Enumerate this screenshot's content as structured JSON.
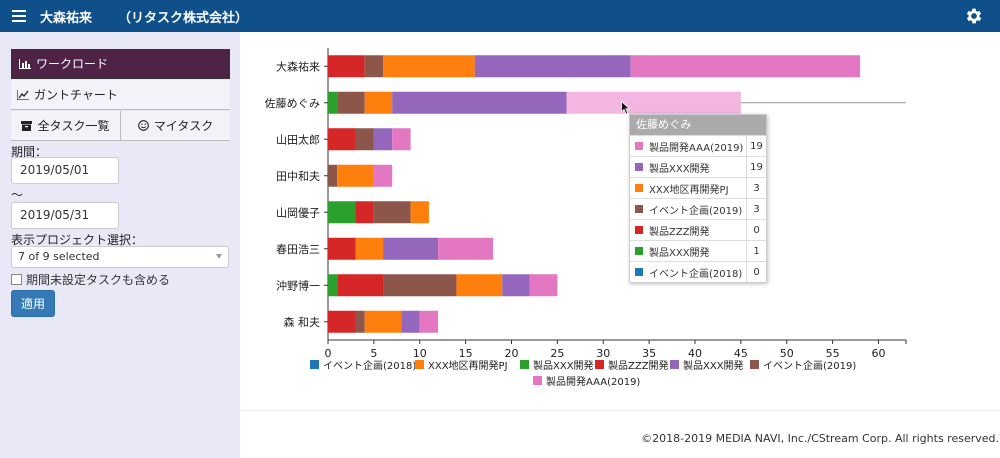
{
  "header": {
    "user_name": "大森祐来",
    "company": "（リタスク株式会社）"
  },
  "sidebar": {
    "workload_label": "ワークロード",
    "gantt_label": "ガントチャート",
    "all_tasks_label": "全タスク一覧",
    "my_tasks_label": "マイタスク",
    "period_label": "期間：",
    "start_date": "2019/05/01",
    "tilde": "～",
    "end_date": "2019/05/31",
    "project_select_label": "表示プロジェクト選択：",
    "project_select_value": "7 of 9 selected",
    "include_unset_label": "期間未設定タスクも含める",
    "apply_label": "適用"
  },
  "colors": {
    "event2018": "#1f77b4",
    "xxx_redev": "#ff7f0e",
    "prod_xxx_green": "#2ca02c",
    "prod_zzz": "#d62728",
    "prod_xxx_purple": "#9467bd",
    "event2019": "#8c564b",
    "prod_aaa": "#e377c2"
  },
  "chart_data": {
    "type": "bar",
    "orientation": "horizontal",
    "stacked": true,
    "categories": [
      "大森祐来",
      "佐藤めぐみ",
      "山田太郎",
      "田中和夫",
      "山岡優子",
      "春田浩三",
      "沖野博一",
      "森 和夫"
    ],
    "xlim": [
      0,
      63
    ],
    "xticks": [
      0,
      5,
      10,
      15,
      20,
      25,
      30,
      35,
      40,
      45,
      50,
      55,
      60
    ],
    "series": [
      {
        "name": "イベント企画(2018)",
        "key": "event2018",
        "values": [
          0,
          0,
          0,
          0,
          0,
          0,
          0,
          0
        ]
      },
      {
        "name": "製品XXX開発",
        "key": "prod_xxx_green",
        "values": [
          0,
          1,
          0,
          0,
          3,
          0,
          1,
          0
        ]
      },
      {
        "name": "製品ZZZ開発",
        "key": "prod_zzz",
        "values": [
          4,
          0,
          3,
          0,
          2,
          3,
          5,
          3
        ]
      },
      {
        "name": "イベント企画(2019)",
        "key": "event2019",
        "values": [
          2,
          3,
          2,
          1,
          4,
          0,
          8,
          1
        ]
      },
      {
        "name": "XXX地区再開発PJ",
        "key": "xxx_redev",
        "values": [
          10,
          3,
          0,
          4,
          2,
          3,
          5,
          4
        ]
      },
      {
        "name": "製品XXX開発",
        "key": "prod_xxx_purple",
        "values": [
          17,
          19,
          2,
          0,
          0,
          6,
          3,
          2
        ]
      },
      {
        "name": "製品開発AAA(2019)",
        "key": "prod_aaa",
        "values": [
          25,
          19,
          2,
          2,
          0,
          6,
          3,
          2
        ]
      }
    ],
    "legend": [
      {
        "name": "イベント企画(2018)",
        "key": "event2018"
      },
      {
        "name": "XXX地区再開発PJ",
        "key": "xxx_redev"
      },
      {
        "name": "製品XXX開発",
        "key": "prod_xxx_green"
      },
      {
        "name": "製品ZZZ開発",
        "key": "prod_zzz"
      },
      {
        "name": "製品XXX開発",
        "key": "prod_xxx_purple"
      },
      {
        "name": "イベント企画(2019)",
        "key": "event2019"
      },
      {
        "name": "製品開発AAA(2019)",
        "key": "prod_aaa"
      }
    ],
    "legend_position": "bottom"
  },
  "tooltip": {
    "title": "佐藤めぐみ",
    "rows": [
      {
        "name": "製品開発AAA(2019)",
        "key": "prod_aaa",
        "value": "19"
      },
      {
        "name": "製品XXX開発",
        "key": "prod_xxx_purple",
        "value": "19"
      },
      {
        "name": "XXX地区再開発PJ",
        "key": "xxx_redev",
        "value": "3"
      },
      {
        "name": "イベント企画(2019)",
        "key": "event2019",
        "value": "3"
      },
      {
        "name": "製品ZZZ開発",
        "key": "prod_zzz",
        "value": "0"
      },
      {
        "name": " 製品XXX開発",
        "key": "prod_xxx_green",
        "value": "1"
      },
      {
        "name": "イベント企画(2018)",
        "key": "event2018",
        "value": "0"
      }
    ]
  },
  "footer": {
    "copyright": "©2018-2019 MEDIA NAVI, Inc./CStream Corp. All rights reserved."
  }
}
